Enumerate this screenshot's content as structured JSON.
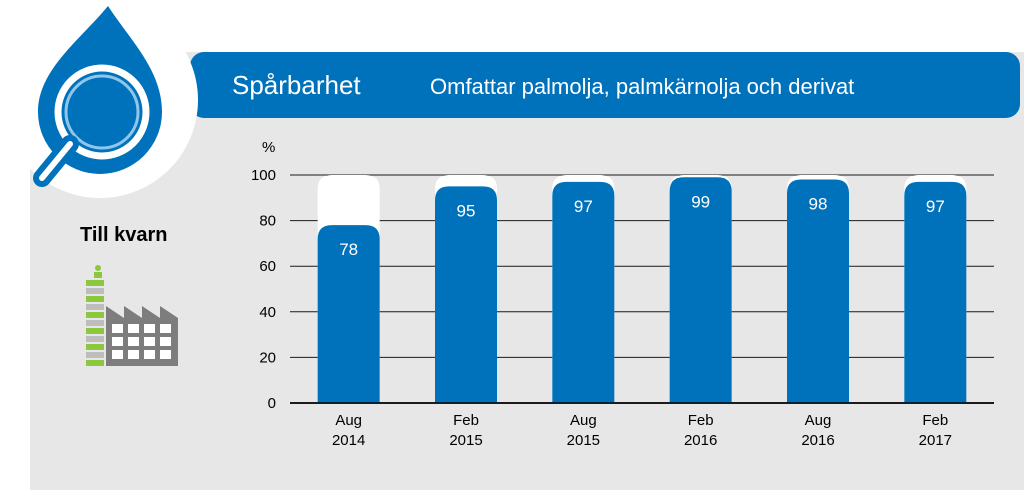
{
  "header": {
    "title": "Spårbarhet",
    "subtitle": "Omfattar palmolja, palmkärnolja och derivat"
  },
  "side": {
    "label": "Till kvarn",
    "logo_icon": "magnifier-drop-icon",
    "factory_icon": "factory-icon"
  },
  "colors": {
    "brand_blue": "#0072bb",
    "panel_gray": "#e7e7e7",
    "accent_green": "#8dc63f"
  },
  "chart_data": {
    "type": "bar",
    "ylabel": "%",
    "ylim": [
      0,
      100
    ],
    "yticks": [
      0,
      20,
      40,
      60,
      80,
      100
    ],
    "grid": true,
    "categories": [
      [
        "Aug",
        "2014"
      ],
      [
        "Feb",
        "2015"
      ],
      [
        "Aug",
        "2015"
      ],
      [
        "Feb",
        "2016"
      ],
      [
        "Aug",
        "2016"
      ],
      [
        "Feb",
        "2017"
      ]
    ],
    "values": [
      78,
      95,
      97,
      99,
      98,
      97
    ],
    "data_labels": [
      "78",
      "95",
      "97",
      "99",
      "98",
      "97"
    ]
  }
}
